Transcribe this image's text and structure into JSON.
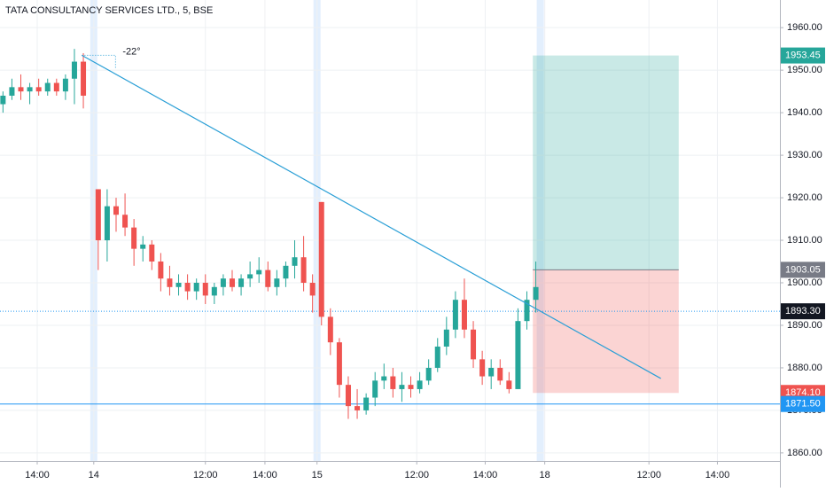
{
  "chart_data": {
    "type": "candlestick",
    "title": "TATA CONSULTANCY SERVICES LTD., 5, BSE",
    "up_color": "#26a69a",
    "down_color": "#ef5350",
    "x": [
      1,
      4,
      7,
      10,
      13,
      16,
      19,
      22,
      25,
      28,
      33,
      36,
      39,
      42,
      45,
      48,
      51,
      54,
      57,
      60,
      63,
      66,
      69,
      72,
      75,
      78,
      81,
      84,
      87,
      90,
      93,
      96,
      99,
      102,
      105,
      108,
      111,
      114,
      117,
      120,
      123,
      126,
      129,
      132,
      135,
      138,
      141,
      144,
      147,
      150,
      153,
      156,
      159,
      162,
      165,
      168,
      171,
      174,
      177,
      180
    ],
    "open": [
      1942,
      1944,
      1946,
      1945,
      1946,
      1945,
      1947,
      1945,
      1948,
      1952,
      1922,
      1910,
      1918,
      1916,
      1913,
      1908,
      1909,
      1905,
      1901,
      1899,
      1900,
      1898,
      1900,
      1897,
      1899,
      1901,
      1899,
      1901,
      1902,
      1903,
      1899,
      1901,
      1904,
      1906,
      1900,
      1919,
      1892,
      1886,
      1876,
      1871,
      1870,
      1873,
      1877,
      1878,
      1875,
      1876,
      1875,
      1877,
      1880,
      1885,
      1889,
      1896,
      1889,
      1882,
      1878,
      1880,
      1877,
      1875,
      1891,
      1896
    ],
    "high": [
      1945,
      1948,
      1949,
      1947,
      1948,
      1948,
      1948,
      1949,
      1955,
      1954,
      1922,
      1922,
      1920,
      1921,
      1915,
      1911,
      1910,
      1907,
      1904,
      1902,
      1902,
      1901,
      1902,
      1900,
      1902,
      1903,
      1902,
      1905,
      1906,
      1905,
      1903,
      1905,
      1910,
      1911,
      1902,
      1919,
      1894,
      1887,
      1878,
      1875,
      1874,
      1879,
      1881,
      1880,
      1879,
      1878,
      1879,
      1882,
      1887,
      1892,
      1898,
      1901,
      1891,
      1884,
      1882,
      1882,
      1879,
      1894,
      1898,
      1905
    ],
    "low": [
      1940,
      1943,
      1943,
      1942,
      1944,
      1944,
      1944,
      1943,
      1942,
      1941,
      1903,
      1905,
      1912,
      1911,
      1904,
      1905,
      1903,
      1898,
      1897,
      1897,
      1896,
      1896,
      1895,
      1895,
      1897,
      1898,
      1897,
      1899,
      1900,
      1898,
      1897,
      1899,
      1901,
      1898,
      1893,
      1890,
      1883,
      1873,
      1868,
      1868,
      1869,
      1871,
      1875,
      1873,
      1872,
      1873,
      1874,
      1876,
      1879,
      1883,
      1887,
      1887,
      1880,
      1876,
      1875,
      1876,
      1874,
      1875,
      1889,
      1893
    ],
    "close": [
      1944,
      1946,
      1945,
      1946,
      1945,
      1947,
      1945,
      1948,
      1952,
      1944,
      1910,
      1918,
      1916,
      1913,
      1908,
      1909,
      1905,
      1901,
      1899,
      1900,
      1898,
      1900,
      1897,
      1899,
      1901,
      1899,
      1901,
      1902,
      1903,
      1899,
      1901,
      1904,
      1906,
      1900,
      1897,
      1892,
      1886,
      1876,
      1871,
      1870,
      1873,
      1877,
      1878,
      1875,
      1876,
      1875,
      1877,
      1880,
      1885,
      1889,
      1896,
      1889,
      1882,
      1878,
      1880,
      1877,
      1875,
      1891,
      1896,
      1899
    ],
    "xlim": [
      0,
      262
    ],
    "xticks": [
      {
        "value": 12.5,
        "label": "14:00"
      },
      {
        "value": 31.5,
        "label": "14"
      },
      {
        "value": 69,
        "label": "12:00"
      },
      {
        "value": 89,
        "label": "14:00"
      },
      {
        "value": 106.5,
        "label": "15"
      },
      {
        "value": 140,
        "label": "12:00"
      },
      {
        "value": 163,
        "label": "14:00"
      },
      {
        "value": 183,
        "label": "18"
      },
      {
        "value": 218,
        "label": "12:00"
      },
      {
        "value": 241,
        "label": "14:00"
      }
    ],
    "ylim": [
      1858.1,
      1966.5
    ],
    "yticks": [
      {
        "value": 1860,
        "label": "1860.00"
      },
      {
        "value": 1870,
        "label": "1870.00"
      },
      {
        "value": 1880,
        "label": "1880.00"
      },
      {
        "value": 1890,
        "label": "1890.00"
      },
      {
        "value": 1900,
        "label": "1900.00"
      },
      {
        "value": 1910,
        "label": "1910.00"
      },
      {
        "value": 1920,
        "label": "1920.00"
      },
      {
        "value": 1930,
        "label": "1930.00"
      },
      {
        "value": 1940,
        "label": "1940.00"
      },
      {
        "value": 1950,
        "label": "1950.00"
      },
      {
        "value": 1960,
        "label": "1960.00"
      }
    ],
    "grid": true,
    "levels": [
      {
        "value": 1953.45,
        "label": "1953.45",
        "color": "#26a69a"
      },
      {
        "value": 1903.05,
        "label": "1903.05",
        "color": "#787b86"
      },
      {
        "value": 1893.3,
        "label": "1893.30",
        "color": "#131722"
      },
      {
        "value": 1874.1,
        "label": "1874.10",
        "color": "#ef5350"
      },
      {
        "value": 1871.5,
        "label": "1871.50",
        "color": "#2196f3"
      }
    ],
    "position_x": [
      179,
      228
    ],
    "trendline": {
      "x": [
        27.5,
        222
      ],
      "y": [
        1953.5,
        1877.5
      ],
      "color": "#2a9fd6",
      "angle_label": "-22°"
    },
    "session_starts": [
      31.5,
      106.5,
      181.5
    ]
  }
}
